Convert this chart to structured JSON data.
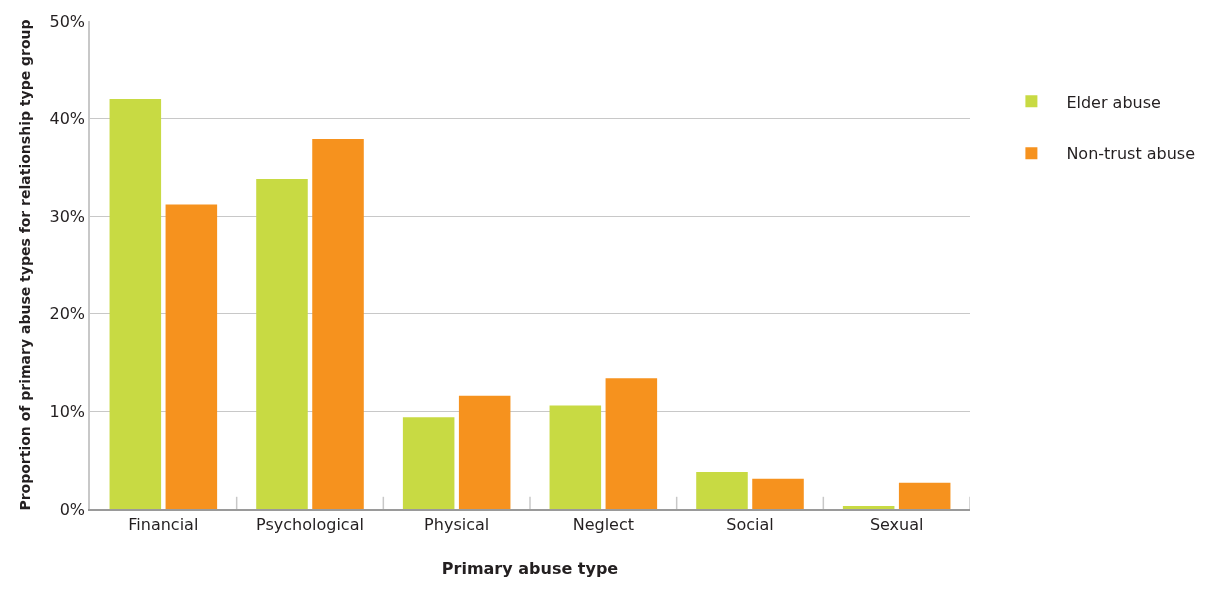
{
  "chart_data": {
    "type": "bar",
    "xlabel": "Primary abuse type",
    "ylabel": "Proportion of primary abuse types for relationship type group",
    "categories": [
      "Financial",
      "Psychological",
      "Physical",
      "Neglect",
      "Social",
      "Sexual"
    ],
    "series": [
      {
        "name": "Elder abuse",
        "color": "#c8da43",
        "values": [
          42.0,
          33.8,
          9.4,
          10.6,
          3.8,
          0.3
        ]
      },
      {
        "name": "Non-trust abuse",
        "color": "#f6921e",
        "values": [
          31.2,
          37.9,
          11.6,
          13.4,
          3.1,
          2.7
        ]
      }
    ],
    "ylim": [
      0,
      50
    ],
    "yticks": [
      {
        "value": 0,
        "label": "0%"
      },
      {
        "value": 10,
        "label": "10%"
      },
      {
        "value": 20,
        "label": "20%"
      },
      {
        "value": 30,
        "label": "30%"
      },
      {
        "value": 40,
        "label": "40%"
      },
      {
        "value": 50,
        "label": "50%"
      }
    ],
    "grid": "y",
    "legend": "top right"
  }
}
